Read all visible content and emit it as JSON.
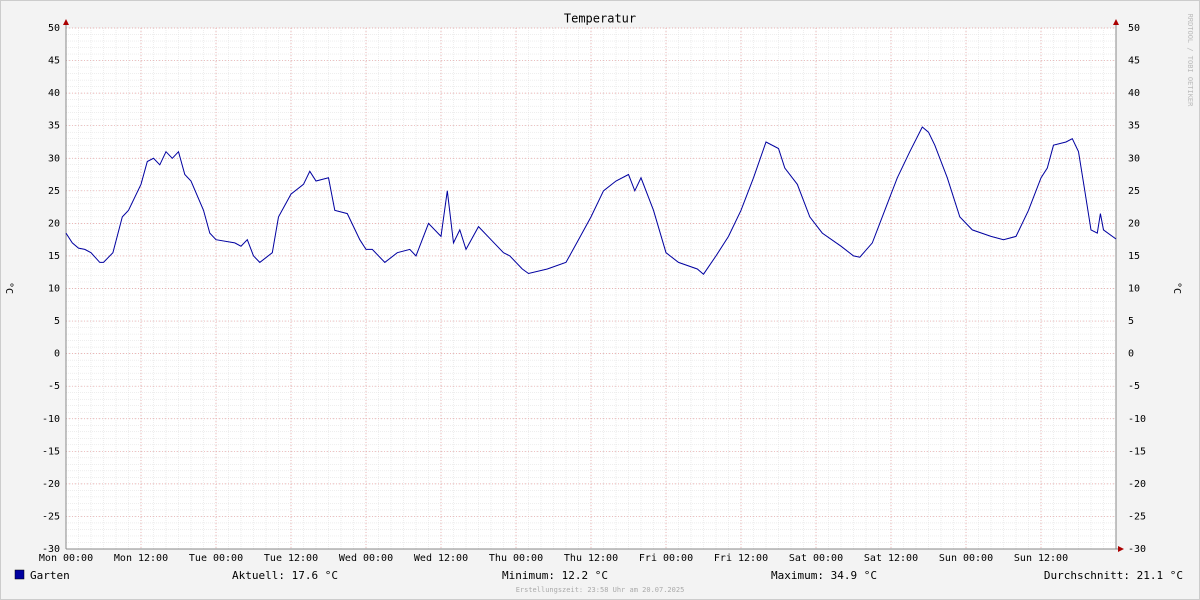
{
  "chart_data": {
    "type": "line",
    "title": "Temperatur",
    "ylabel": "°C",
    "watermark": "RRDTOOL / TOBI OETIKER",
    "x": [
      0,
      1,
      2,
      3,
      4,
      5.4,
      6,
      7.5,
      9,
      10,
      12,
      13,
      14,
      15,
      16,
      17,
      18,
      19,
      20,
      22,
      23,
      24,
      27,
      28,
      29,
      30,
      31,
      33,
      34,
      36,
      38,
      39,
      40,
      42,
      43,
      45,
      47,
      48,
      49,
      51,
      53,
      55,
      56,
      58,
      60,
      61,
      62,
      63,
      64,
      66,
      68,
      70,
      71,
      73,
      74,
      77,
      80,
      82,
      84,
      86,
      88,
      90,
      91,
      92,
      94,
      96,
      98,
      101,
      102,
      104,
      106,
      108,
      110,
      112,
      114,
      115,
      117,
      119,
      121,
      124,
      126,
      127,
      129,
      131,
      133,
      135,
      137,
      138,
      139,
      141,
      143,
      145,
      148,
      150,
      152,
      154,
      156,
      157,
      158,
      160,
      161,
      162,
      163,
      164,
      165,
      165.5,
      166,
      168
    ],
    "series": [
      {
        "name": "Garten",
        "color": "#0000a0",
        "values": [
          18.5,
          17,
          16.2,
          16,
          15.5,
          14,
          14,
          15.5,
          21,
          22,
          26,
          29.5,
          30,
          29,
          31,
          30,
          31,
          27.5,
          26.5,
          22,
          18.5,
          17.5,
          17,
          16.5,
          17.5,
          15,
          14,
          15.5,
          21,
          24.5,
          26,
          28,
          26.5,
          27,
          22,
          21.5,
          17.5,
          16,
          16,
          14,
          15.5,
          16,
          15,
          20,
          18,
          25,
          17,
          19,
          16,
          19.5,
          17.5,
          15.5,
          15,
          13,
          12.3,
          13,
          14,
          17.5,
          21,
          25,
          26.5,
          27.5,
          25,
          27,
          22,
          15.5,
          14,
          13,
          12.2,
          15,
          18,
          22,
          27,
          32.5,
          31.5,
          28.5,
          26,
          21,
          18.5,
          16.5,
          15,
          14.8,
          17,
          22,
          27,
          31,
          34.8,
          34,
          32,
          27,
          21,
          19,
          18,
          17.5,
          18,
          22,
          27,
          28.5,
          32,
          32.5,
          33,
          31,
          25,
          19,
          18.5,
          21.5,
          19,
          17.6
        ]
      }
    ],
    "xlim": [
      0,
      168
    ],
    "xticks": [
      {
        "value": 0,
        "label": "Mon 00:00"
      },
      {
        "value": 12,
        "label": "Mon 12:00"
      },
      {
        "value": 24,
        "label": "Tue 00:00"
      },
      {
        "value": 36,
        "label": "Tue 12:00"
      },
      {
        "value": 48,
        "label": "Wed 00:00"
      },
      {
        "value": 60,
        "label": "Wed 12:00"
      },
      {
        "value": 72,
        "label": "Thu 00:00"
      },
      {
        "value": 84,
        "label": "Thu 12:00"
      },
      {
        "value": 96,
        "label": "Fri 00:00"
      },
      {
        "value": 108,
        "label": "Fri 12:00"
      },
      {
        "value": 120,
        "label": "Sat 00:00"
      },
      {
        "value": 132,
        "label": "Sat 12:00"
      },
      {
        "value": 144,
        "label": "Sun 00:00"
      },
      {
        "value": 156,
        "label": "Sun 12:00"
      }
    ],
    "ylim": [
      -30,
      50
    ],
    "yticks": [
      -30,
      -25,
      -20,
      -15,
      -10,
      -5,
      0,
      5,
      10,
      15,
      20,
      25,
      30,
      35,
      40,
      45,
      50
    ],
    "grid": true,
    "stats": [
      "Aktuell: 17.6 °C",
      "Minimum: 12.2 °C",
      "Maximum: 34.9 °C",
      "Durchschnitt: 21.1 °C"
    ],
    "footer": "Erstellungszeit: 23:58 Uhr am 20.07.2025"
  }
}
